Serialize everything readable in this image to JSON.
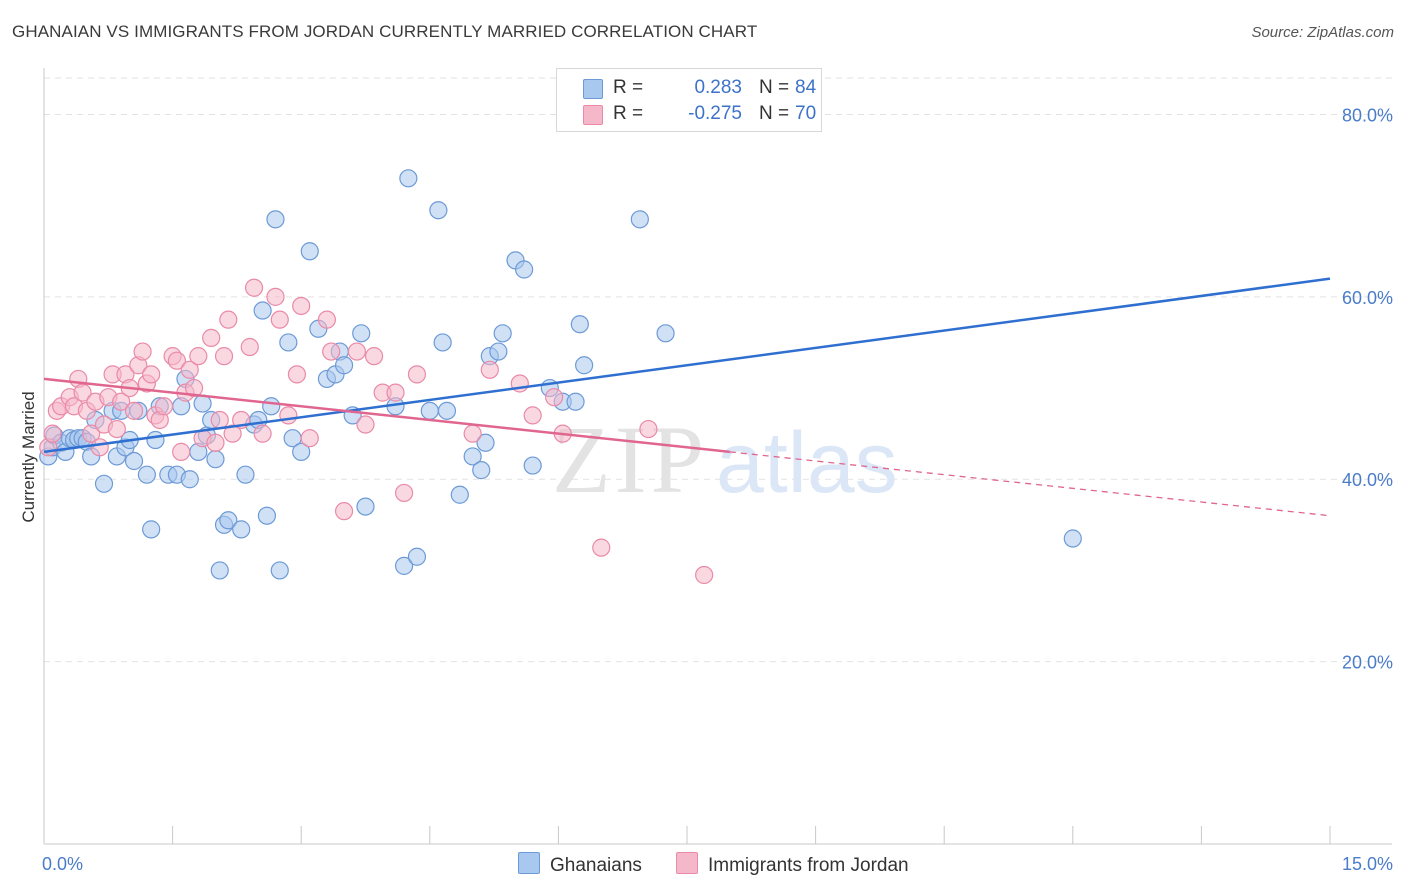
{
  "header": {
    "title": "GHANAIAN VS IMMIGRANTS FROM JORDAN CURRENTLY MARRIED CORRELATION CHART",
    "source": "Source: ZipAtlas.com"
  },
  "legend": {
    "rows": [
      {
        "r_label": "R =",
        "r_value": "0.283",
        "n_label": "N =",
        "n_value": "84"
      },
      {
        "r_label": "R =",
        "r_value": "-0.275",
        "n_label": "N =",
        "n_value": "70"
      }
    ]
  },
  "watermark": {
    "zip": "ZIP",
    "atlas": "atlas"
  },
  "colors": {
    "blue_fill": "#a9c8ef",
    "blue_stroke": "#6d9ad6",
    "blue_line": "#2e6fd0",
    "pink_fill": "#f5b8cb",
    "pink_stroke": "#e98aa8",
    "pink_line": "#e06690",
    "tick_text": "#4a7cc9",
    "grid": "#e2e2e2"
  },
  "chart_data": {
    "type": "scatter",
    "title": "GHANAIAN VS IMMIGRANTS FROM JORDAN CURRENTLY MARRIED CORRELATION CHART",
    "xlabel": "",
    "ylabel": "Currently Married",
    "xlim": [
      0,
      15
    ],
    "ylim": [
      0,
      84
    ],
    "x_tick_labels": [
      {
        "value": 0,
        "label": "0.0%"
      },
      {
        "value": 15,
        "label": "15.0%"
      }
    ],
    "y_tick_labels": [
      {
        "value": 20,
        "label": "20.0%"
      },
      {
        "value": 40,
        "label": "40.0%"
      },
      {
        "value": 60,
        "label": "60.0%"
      },
      {
        "value": 80,
        "label": "80.0%"
      }
    ],
    "grid": true,
    "legend_position": "top-center",
    "series": [
      {
        "name": "Ghanaians",
        "color": "#a9c8ef",
        "trend": {
          "x0": 0,
          "y0": 43.0,
          "x1": 15,
          "y1": 62.0,
          "dashed_from": null
        },
        "points": [
          [
            0.05,
            42.5
          ],
          [
            0.1,
            43.5
          ],
          [
            0.12,
            44.8
          ],
          [
            0.2,
            44
          ],
          [
            0.25,
            43
          ],
          [
            0.3,
            44.5
          ],
          [
            0.35,
            44.3
          ],
          [
            0.4,
            44.5
          ],
          [
            0.45,
            44.5
          ],
          [
            0.5,
            44.1
          ],
          [
            0.55,
            42.5
          ],
          [
            0.6,
            46.5
          ],
          [
            0.7,
            39.5
          ],
          [
            0.8,
            47.5
          ],
          [
            0.85,
            42.5
          ],
          [
            0.9,
            47.5
          ],
          [
            0.95,
            43.5
          ],
          [
            1.0,
            44.3
          ],
          [
            1.05,
            42
          ],
          [
            1.1,
            47.5
          ],
          [
            1.2,
            40.5
          ],
          [
            1.25,
            34.5
          ],
          [
            1.3,
            44.3
          ],
          [
            1.35,
            48
          ],
          [
            1.45,
            40.5
          ],
          [
            1.55,
            40.5
          ],
          [
            1.6,
            48
          ],
          [
            1.65,
            51
          ],
          [
            1.7,
            40
          ],
          [
            1.8,
            43
          ],
          [
            1.85,
            48.3
          ],
          [
            1.9,
            44.8
          ],
          [
            1.95,
            46.5
          ],
          [
            2.0,
            42.2
          ],
          [
            2.05,
            30
          ],
          [
            2.1,
            35
          ],
          [
            2.15,
            35.5
          ],
          [
            2.3,
            34.5
          ],
          [
            2.35,
            40.5
          ],
          [
            2.45,
            46
          ],
          [
            2.5,
            46.5
          ],
          [
            2.55,
            58.5
          ],
          [
            2.6,
            36
          ],
          [
            2.65,
            48
          ],
          [
            2.7,
            68.5
          ],
          [
            2.75,
            30
          ],
          [
            2.85,
            55
          ],
          [
            2.9,
            44.5
          ],
          [
            3.0,
            43
          ],
          [
            3.1,
            65
          ],
          [
            3.2,
            56.5
          ],
          [
            3.3,
            51
          ],
          [
            3.4,
            51.5
          ],
          [
            3.45,
            54
          ],
          [
            3.5,
            52.5
          ],
          [
            3.6,
            47
          ],
          [
            3.7,
            56
          ],
          [
            3.75,
            37
          ],
          [
            4.1,
            48
          ],
          [
            4.2,
            30.5
          ],
          [
            4.25,
            73
          ],
          [
            4.35,
            31.5
          ],
          [
            4.5,
            47.5
          ],
          [
            4.6,
            69.5
          ],
          [
            4.65,
            55
          ],
          [
            4.7,
            47.5
          ],
          [
            4.85,
            38.3
          ],
          [
            5.0,
            42.5
          ],
          [
            5.1,
            41
          ],
          [
            5.15,
            44
          ],
          [
            5.2,
            53.5
          ],
          [
            5.3,
            54
          ],
          [
            5.35,
            56
          ],
          [
            5.5,
            64
          ],
          [
            5.6,
            63
          ],
          [
            5.7,
            41.5
          ],
          [
            5.9,
            50
          ],
          [
            6.05,
            48.5
          ],
          [
            6.2,
            48.5
          ],
          [
            6.25,
            57
          ],
          [
            6.3,
            52.5
          ],
          [
            6.95,
            68.5
          ],
          [
            7.25,
            56
          ],
          [
            12.0,
            33.5
          ]
        ]
      },
      {
        "name": "Immigrants from Jordan",
        "color": "#f5b8cb",
        "trend": {
          "x0": 0,
          "y0": 51.0,
          "x1": 15,
          "y1": 36.0,
          "dashed_from": 8.0
        },
        "points": [
          [
            0.05,
            43.5
          ],
          [
            0.1,
            45
          ],
          [
            0.15,
            47.5
          ],
          [
            0.2,
            48
          ],
          [
            0.3,
            49
          ],
          [
            0.35,
            48
          ],
          [
            0.4,
            51
          ],
          [
            0.45,
            49.5
          ],
          [
            0.5,
            47.5
          ],
          [
            0.55,
            45
          ],
          [
            0.6,
            48.5
          ],
          [
            0.65,
            43.5
          ],
          [
            0.7,
            46
          ],
          [
            0.75,
            49
          ],
          [
            0.8,
            51.5
          ],
          [
            0.85,
            45.5
          ],
          [
            0.9,
            48.5
          ],
          [
            0.95,
            51.5
          ],
          [
            1.0,
            50
          ],
          [
            1.05,
            47.5
          ],
          [
            1.1,
            52.5
          ],
          [
            1.15,
            54
          ],
          [
            1.2,
            50.5
          ],
          [
            1.25,
            51.5
          ],
          [
            1.3,
            47
          ],
          [
            1.35,
            46.5
          ],
          [
            1.4,
            48
          ],
          [
            1.5,
            53.5
          ],
          [
            1.55,
            53
          ],
          [
            1.6,
            43
          ],
          [
            1.65,
            49.5
          ],
          [
            1.7,
            52
          ],
          [
            1.75,
            50
          ],
          [
            1.8,
            53.5
          ],
          [
            1.85,
            44.5
          ],
          [
            1.95,
            55.5
          ],
          [
            2.0,
            44
          ],
          [
            2.05,
            46.5
          ],
          [
            2.1,
            53.5
          ],
          [
            2.15,
            57.5
          ],
          [
            2.2,
            45
          ],
          [
            2.3,
            46.5
          ],
          [
            2.4,
            54.5
          ],
          [
            2.45,
            61
          ],
          [
            2.55,
            45
          ],
          [
            2.7,
            60
          ],
          [
            2.75,
            57.5
          ],
          [
            2.85,
            47
          ],
          [
            2.95,
            51.5
          ],
          [
            3.0,
            59
          ],
          [
            3.1,
            44.5
          ],
          [
            3.3,
            57.5
          ],
          [
            3.35,
            54
          ],
          [
            3.5,
            36.5
          ],
          [
            3.65,
            54
          ],
          [
            3.75,
            46
          ],
          [
            3.85,
            53.5
          ],
          [
            3.95,
            49.5
          ],
          [
            4.1,
            49.5
          ],
          [
            4.2,
            38.5
          ],
          [
            4.35,
            51.5
          ],
          [
            5.0,
            45
          ],
          [
            5.2,
            52
          ],
          [
            5.55,
            50.5
          ],
          [
            5.7,
            47
          ],
          [
            5.95,
            49
          ],
          [
            6.05,
            45
          ],
          [
            6.5,
            32.5
          ],
          [
            7.05,
            45.5
          ],
          [
            7.7,
            29.5
          ]
        ]
      }
    ]
  },
  "bottom_legend": {
    "items": [
      {
        "label": "Ghanaians"
      },
      {
        "label": "Immigrants from Jordan"
      }
    ]
  }
}
